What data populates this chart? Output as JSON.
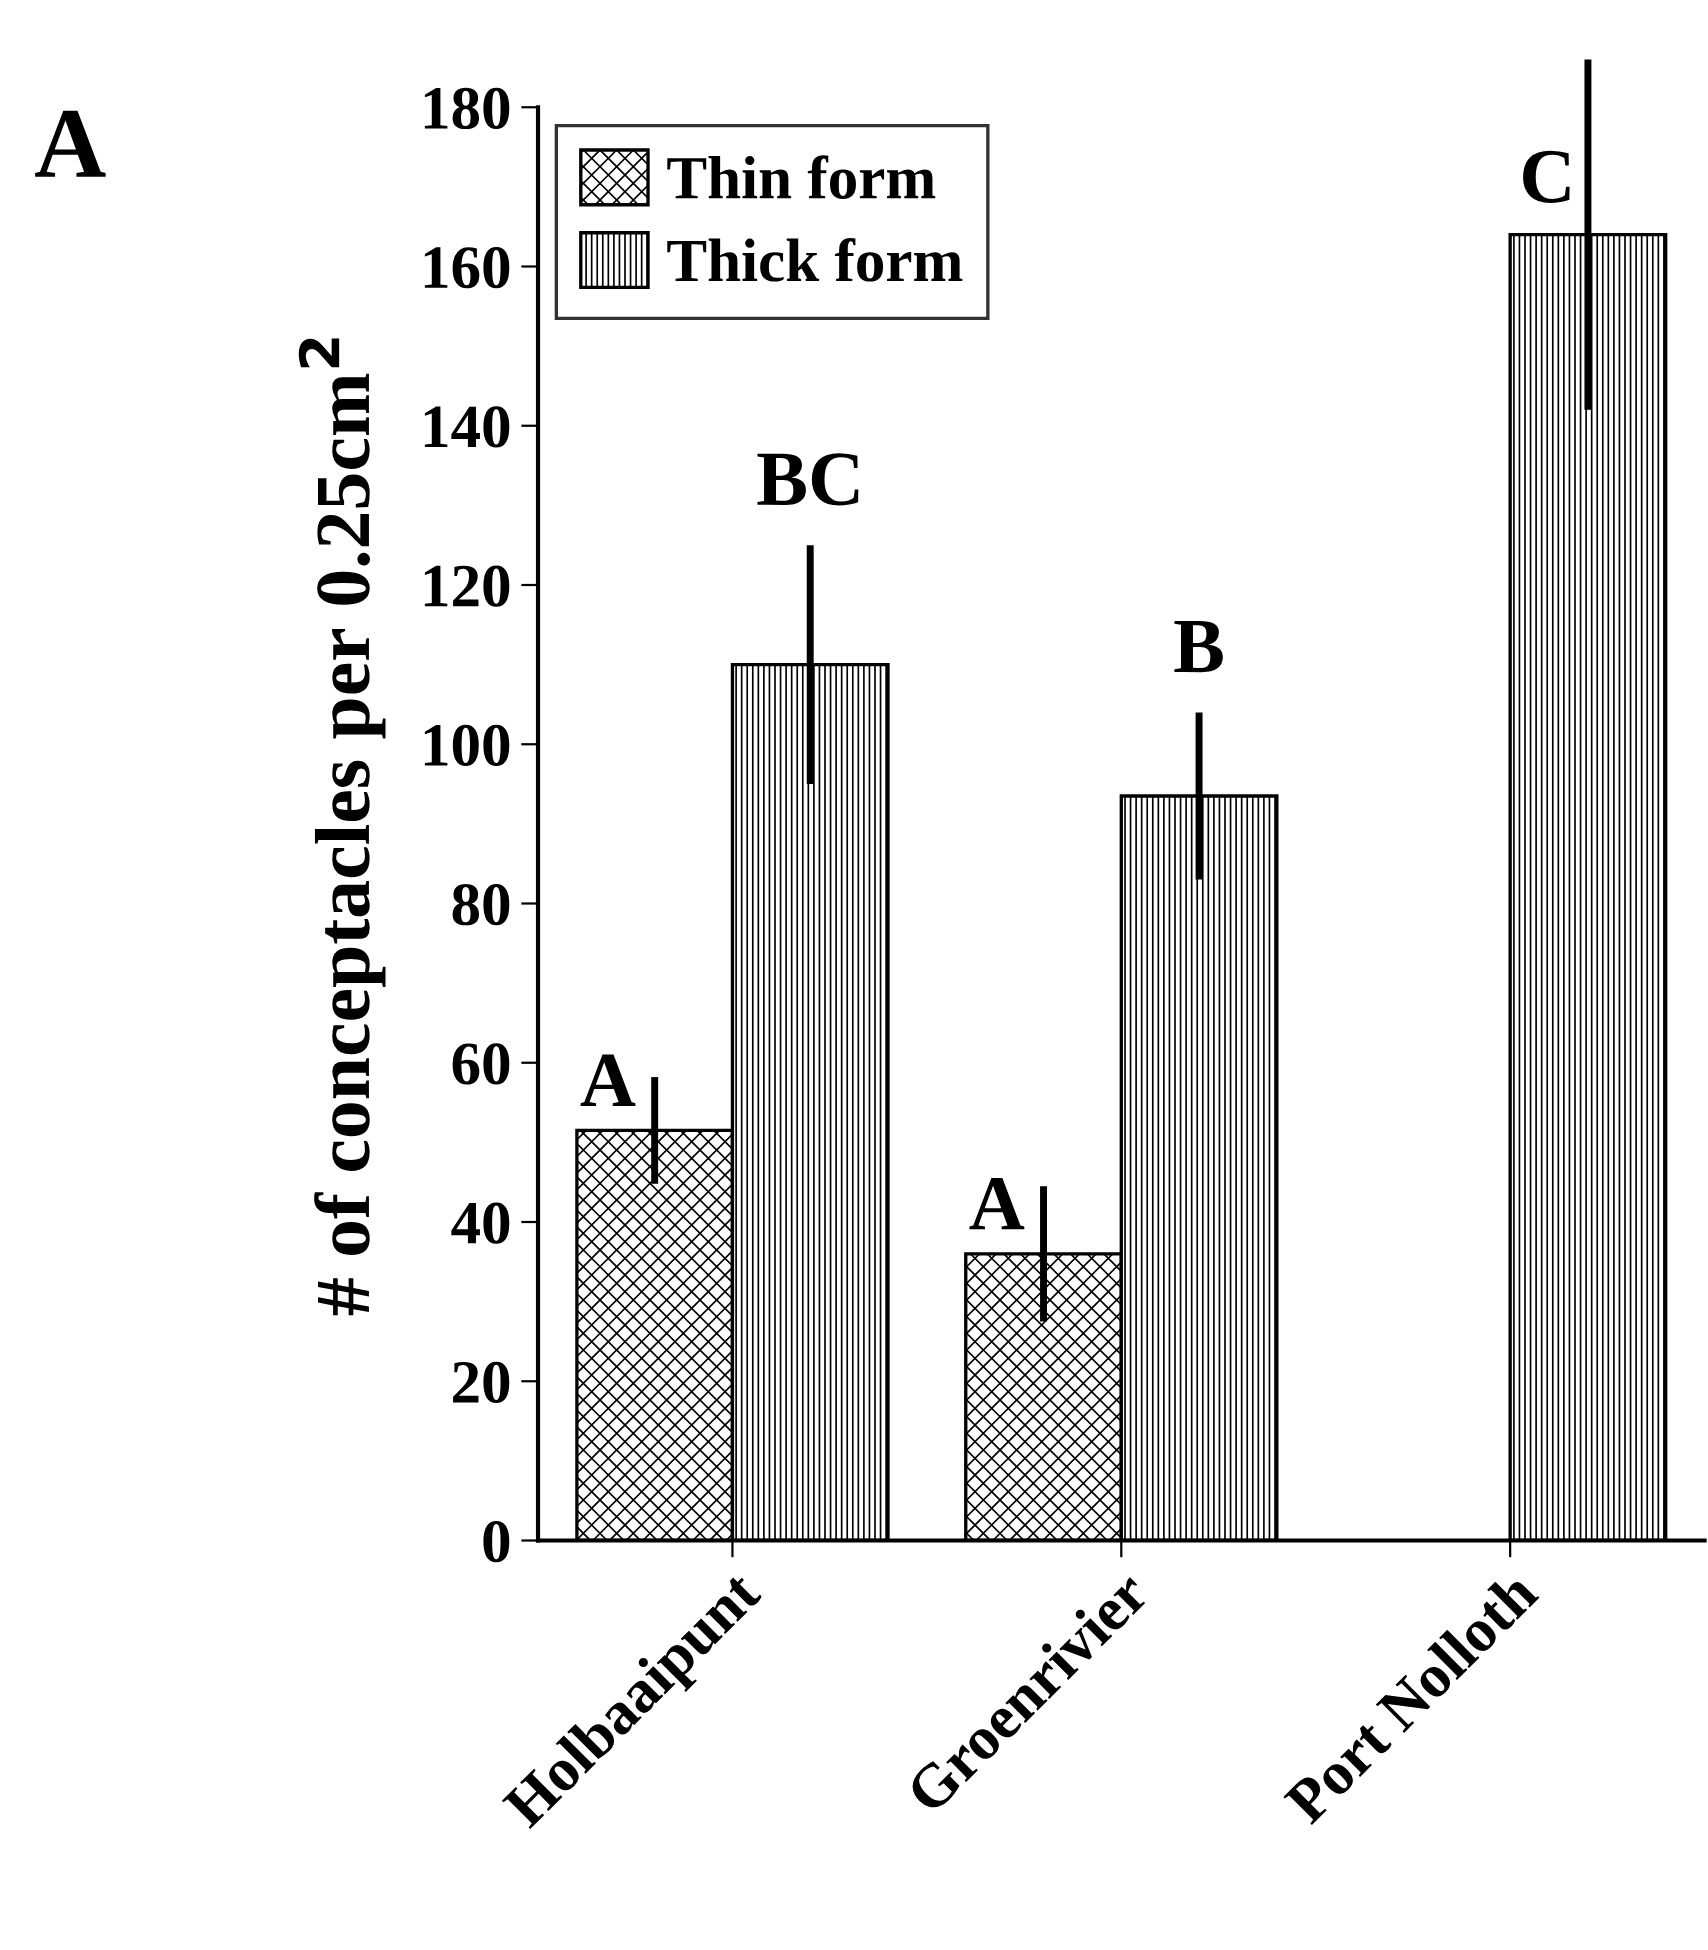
{
  "chart_data": {
    "type": "bar",
    "ylabel": "# of conceptacles per 0.25cm$^{2}$",
    "categories": [
      "Holbaaipunt",
      "Groenrivier",
      "Port Nolloth"
    ],
    "series": [
      {
        "name": "Thin form",
        "color": "#000000",
        "values": [
          51.5,
          36,
          null
        ],
        "errors": [
          6.7,
          8.5,
          null
        ],
        "value_labels": [
          "A",
          "A",
          null
        ]
      },
      {
        "name": "Thick form",
        "color": "#000000",
        "values": [
          110,
          93.5,
          164
        ],
        "errors": [
          15,
          10.5,
          22
        ],
        "value_labels": [
          "BC",
          "B",
          "C"
        ]
      }
    ],
    "ylim": [
      0,
      180
    ],
    "yticks": [
      0,
      20,
      40,
      60,
      80,
      100,
      120,
      140,
      160,
      180
    ],
    "grid": false,
    "legend": "top left",
    "annotations": [
      "A"
    ]
  }
}
